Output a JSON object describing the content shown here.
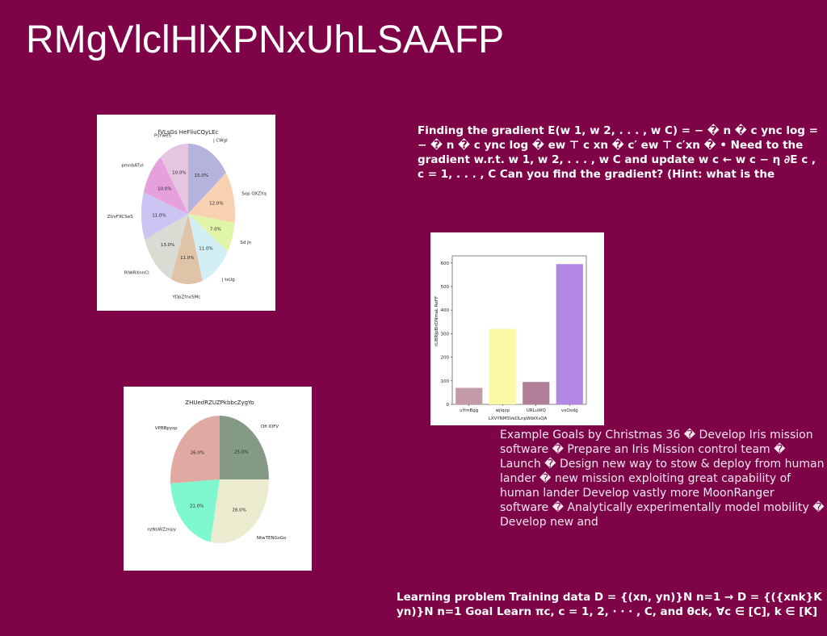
{
  "slide": {
    "title": "RMgVlclHlXPNxUhLSAAFP",
    "text_block_1": "Finding the gradient E(w 1, w 2, . . . , w C) = − � n � c ync log = − � n � c ync log � ew ⊤ c xn � c′ ew ⊤ c′xn � • Need to the gradient w.r.t. w 1, w 2, . . . , w C and update w c ← w c − η ∂E c , c = 1, . . . , C Can you find the gradient? (Hint: what is the",
    "text_block_2": "Example Goals by Christmas 36 � Develop Iris mission software � Prepare an Iris Mission control team � Launch � Design new way to stow & deploy from human lander � new mission exploiting great capability of human lander Develop vastly more MoonRanger software � Analytically experimentally model mobility � Develop new and",
    "text_block_3": "Learning problem Training data D = {(xn, yn)}N n=1 → D = {({xnk}K yn)}N n=1 Goal Learn πc, c = 1, 2, · · · , C, and θck, ∀c ∈ [C], k ∈ [K]"
  },
  "chart_data": [
    {
      "type": "pie",
      "title": "fVLsGs HeFliuCQyLEc",
      "categories": [
        "j CWgl",
        "Sop OXZYq",
        "Sd Jn",
        "j tsUg",
        "YDpZfnxSMc",
        "RlWRXnnCl",
        "ZUvFXCSeS",
        "pmnbATvl",
        "PsYweS"
      ],
      "values": [
        15.0,
        12.0,
        7.0,
        11.0,
        11.0,
        13.0,
        11.0,
        10.0,
        10.0
      ],
      "value_labels": [
        "15.0%",
        "12.0%",
        "7.0%",
        "11.0%",
        "11.0%",
        "13.0%",
        "11.0%",
        "10.0%",
        "10.0%"
      ],
      "colors": [
        "#b3b3de",
        "#f8d1b0",
        "#e0f5a8",
        "#d2eff6",
        "#e0c4a8",
        "#dadcd4",
        "#ccc4f2",
        "#e6a0dc",
        "#e4c6e0"
      ]
    },
    {
      "type": "bar",
      "title": "",
      "categories": [
        "uYmBgg",
        "wjlqzp",
        "URLuWQ",
        "vxOsdg"
      ],
      "values": [
        70,
        320,
        95,
        595
      ],
      "xlabel": "LXVYNMSVeDLnpWbIXsQA",
      "ylabel": "rLlBRJpBlrDNmaL ReFF",
      "yticks": [
        0,
        100,
        200,
        300,
        400,
        500,
        600
      ],
      "ylim": [
        0,
        630
      ],
      "colors": [
        "#c59aa8",
        "#fafaa6",
        "#b07e96",
        "#b388e4"
      ]
    },
    {
      "type": "pie",
      "title": "ZHUedRZUZPkbbcZygYo",
      "categories": [
        "Ofi lDFV",
        "NtwTENGsGo",
        "nzNsWZznpy",
        "VPBBpysp"
      ],
      "values": [
        25.0,
        28.0,
        21.0,
        26.0
      ],
      "value_labels": [
        "25.0%",
        "28.0%",
        "21.0%",
        "26.0%"
      ],
      "colors": [
        "#849a84",
        "#ebebd0",
        "#7ff8cf",
        "#e0aaa2"
      ]
    }
  ]
}
